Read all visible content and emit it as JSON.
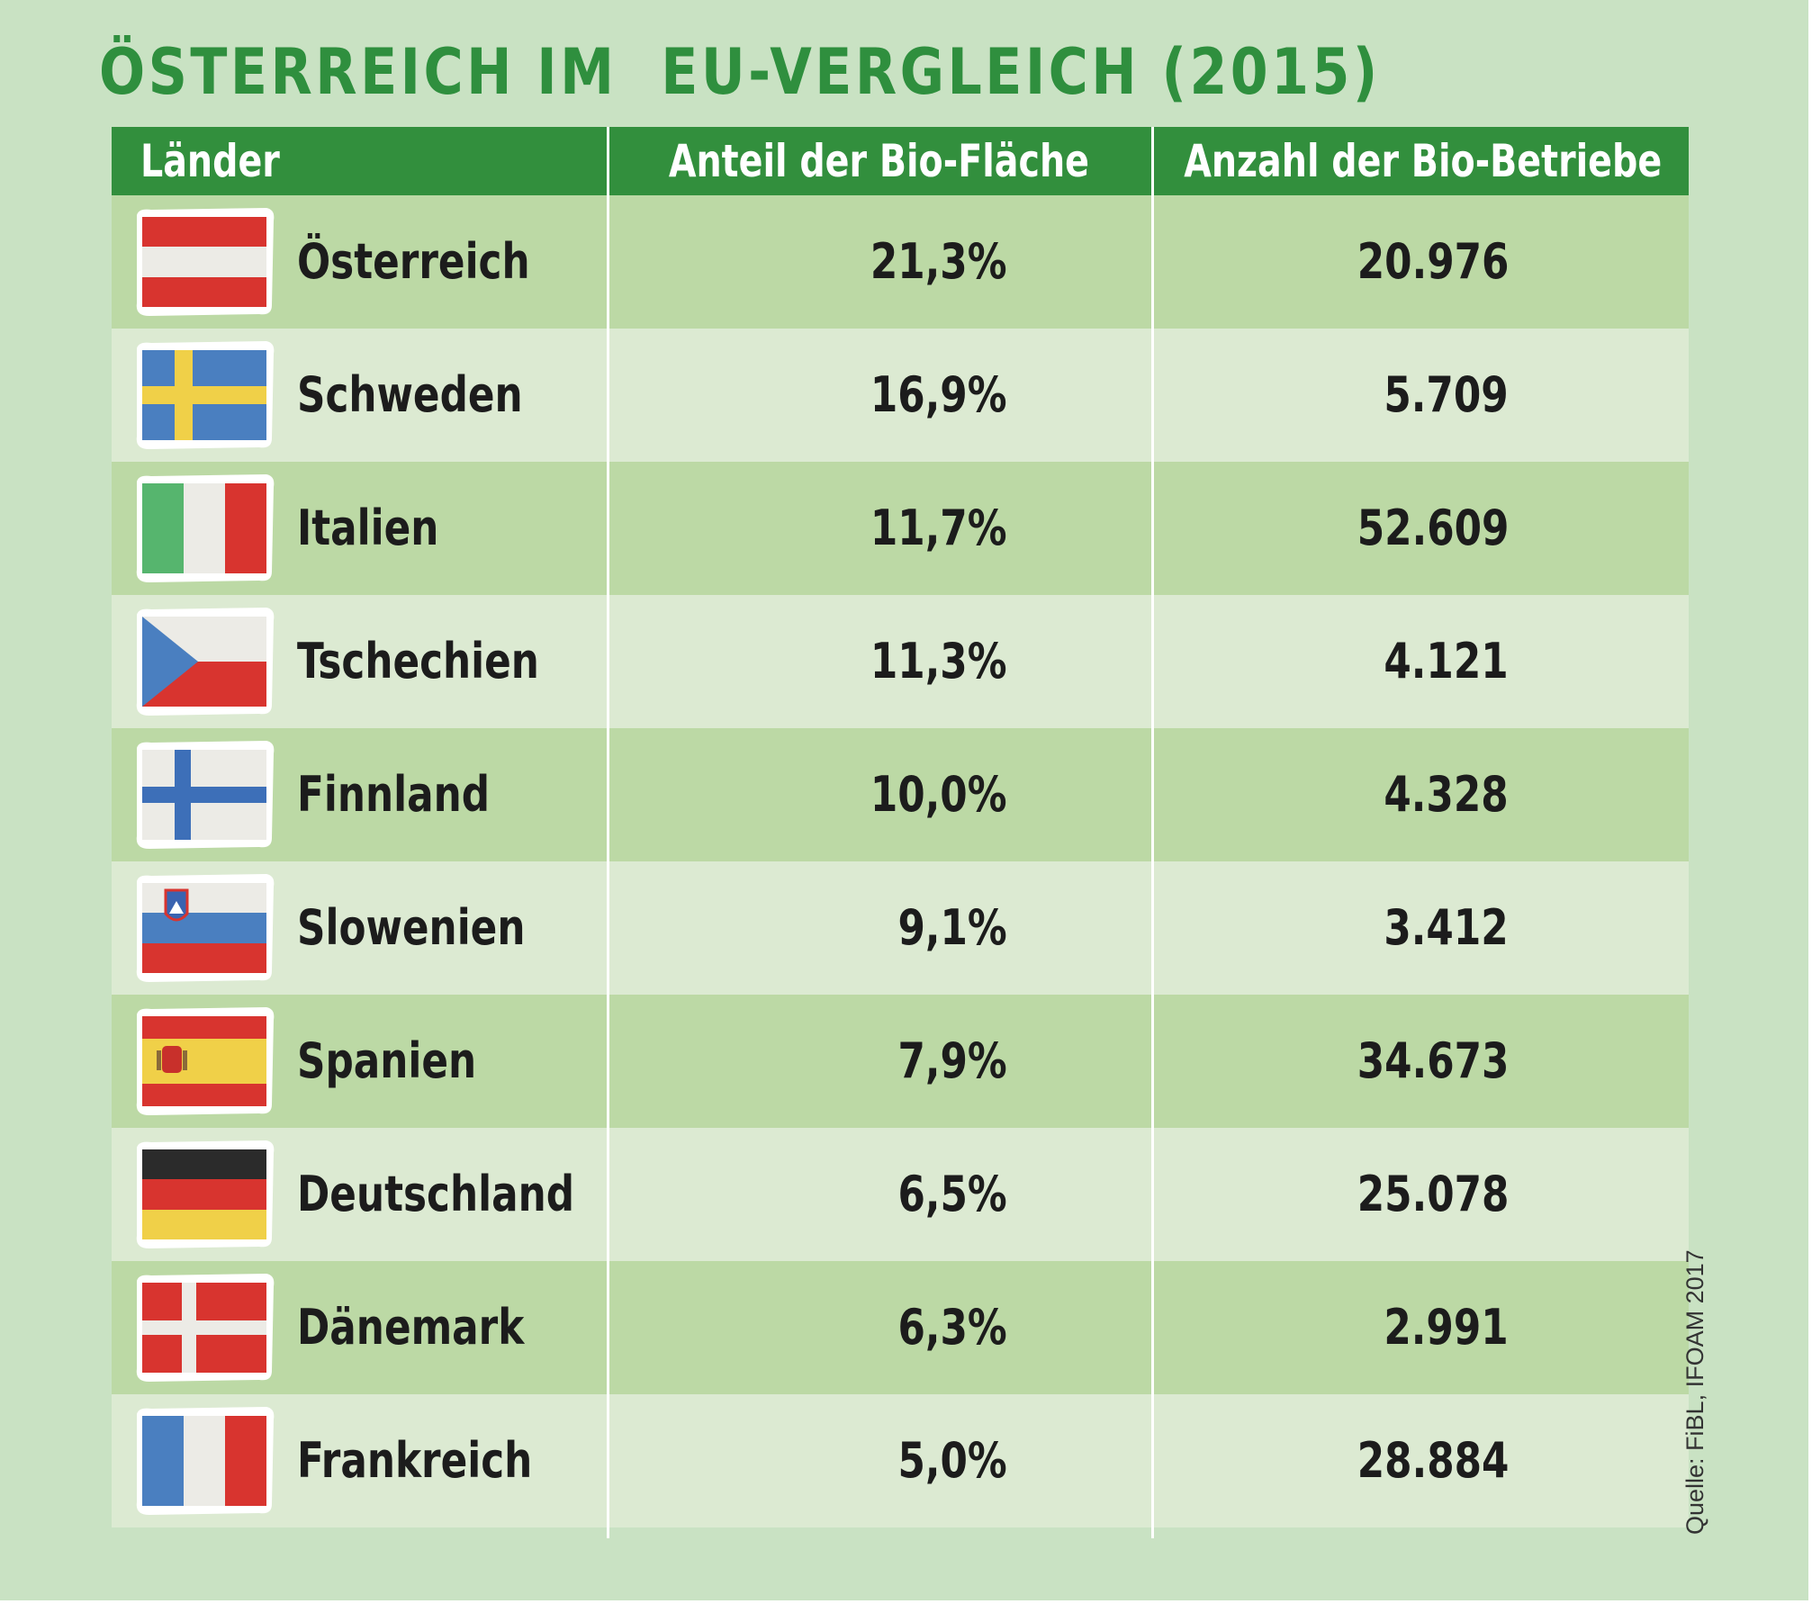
{
  "title": "ÖSTERREICH IM  EU-VERGLEICH (2015)",
  "source": "Quelle: FiBL, IFOAM 2017",
  "colors": {
    "title": "#2f8f3e",
    "header_bg": "#328f3d",
    "row_dark": "#bcd9a5",
    "row_light": "#dcead2",
    "page_bg": "#c9e2c3"
  },
  "chart_data": {
    "type": "table",
    "title": "ÖSTERREICH IM  EU-VERGLEICH (2015)",
    "columns": [
      "Länder",
      "Anteil der Bio-Fläche",
      "Anzahl der Bio-Betriebe"
    ],
    "rows": [
      {
        "flag": "austria-flag-icon",
        "country": "Österreich",
        "share": "21,3%",
        "farms": "20.976"
      },
      {
        "flag": "sweden-flag-icon",
        "country": "Schweden",
        "share": "16,9%",
        "farms": "5.709"
      },
      {
        "flag": "italy-flag-icon",
        "country": "Italien",
        "share": "11,7%",
        "farms": "52.609"
      },
      {
        "flag": "czech-flag-icon",
        "country": "Tschechien",
        "share": "11,3%",
        "farms": "4.121"
      },
      {
        "flag": "finland-flag-icon",
        "country": "Finnland",
        "share": "10,0%",
        "farms": "4.328"
      },
      {
        "flag": "slovenia-flag-icon",
        "country": "Slowenien",
        "share": "9,1%",
        "farms": "3.412"
      },
      {
        "flag": "spain-flag-icon",
        "country": "Spanien",
        "share": "7,9%",
        "farms": "34.673"
      },
      {
        "flag": "germany-flag-icon",
        "country": "Deutschland",
        "share": "6,5%",
        "farms": "25.078"
      },
      {
        "flag": "denmark-flag-icon",
        "country": "Dänemark",
        "share": "6,3%",
        "farms": "2.991"
      },
      {
        "flag": "france-flag-icon",
        "country": "Frankreich",
        "share": "5,0%",
        "farms": "28.884"
      }
    ]
  }
}
